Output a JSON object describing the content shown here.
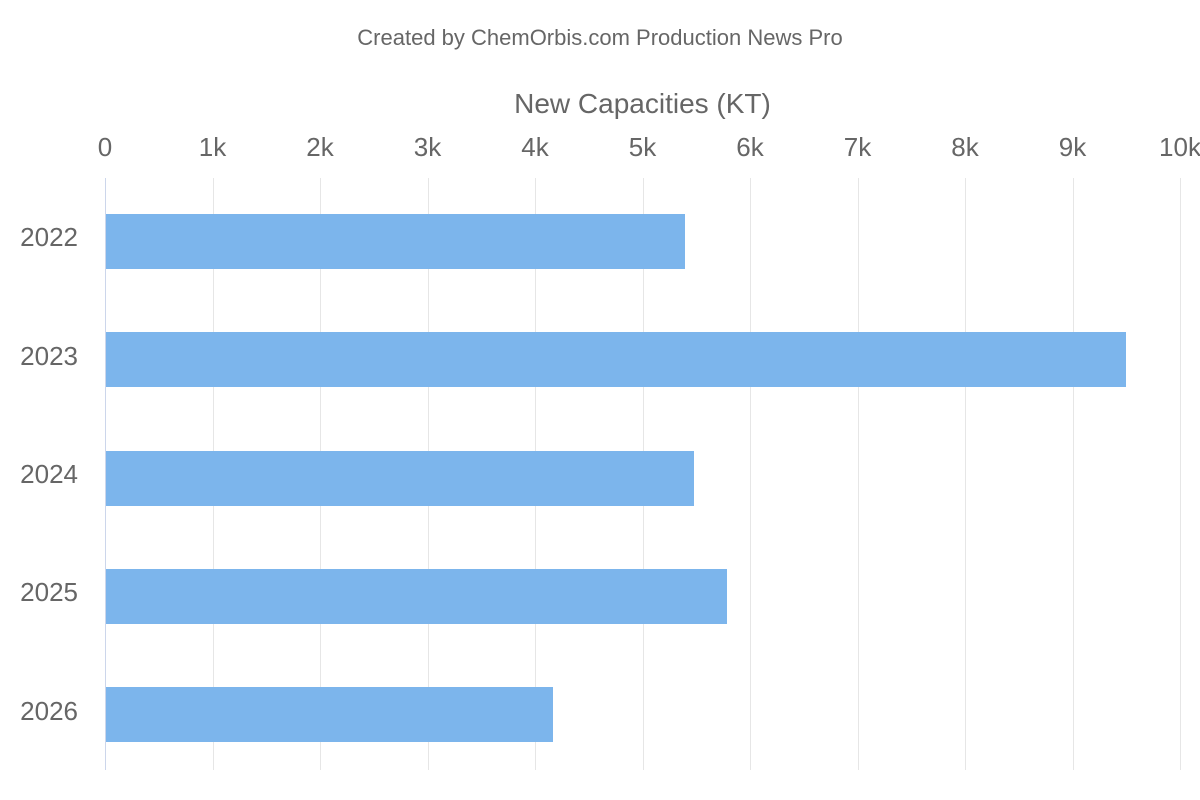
{
  "credit": "Created by ChemOrbis.com Production News Pro",
  "chart_data": {
    "type": "bar",
    "orientation": "horizontal",
    "title": "New Capacities (KT)",
    "categories": [
      "2022",
      "2023",
      "2024",
      "2025",
      "2026"
    ],
    "values": [
      5390,
      9490,
      5470,
      5780,
      4160
    ],
    "x_ticks": [
      "0",
      "1k",
      "2k",
      "3k",
      "4k",
      "5k",
      "6k",
      "7k",
      "8k",
      "9k",
      "10k"
    ],
    "xlim": [
      0,
      10000
    ],
    "axis_position": "top",
    "grid": true,
    "legend": false,
    "bar_color": "#7cb5ec",
    "grid_color": "#e6e6e6",
    "axis_line_color": "#ccd6eb",
    "label_color": "#666666"
  }
}
